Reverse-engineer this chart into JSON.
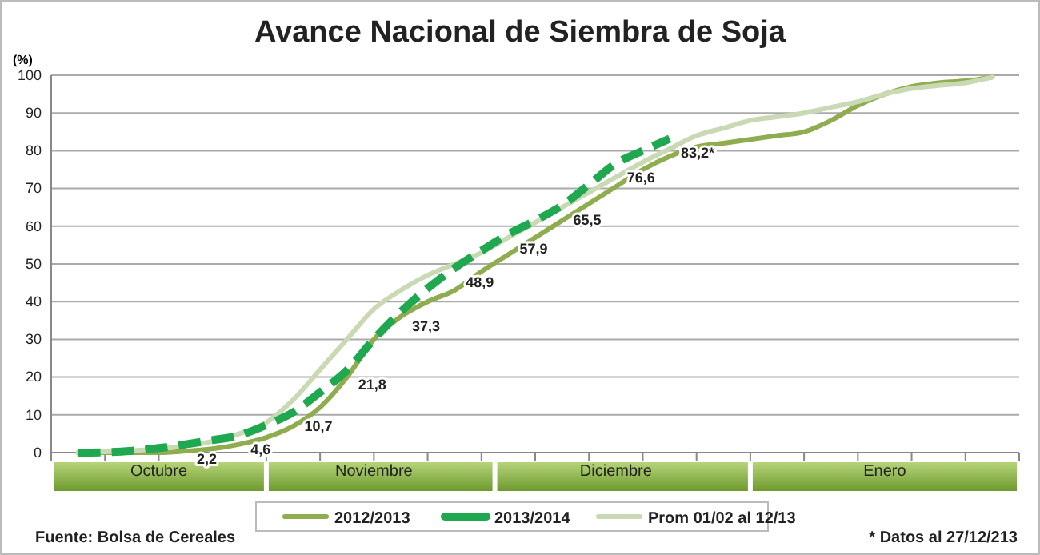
{
  "chart_data": {
    "type": "line",
    "title": "Avance Nacional de Siembra de Soja",
    "ylabel": "(%)",
    "categories": [
      null,
      null,
      null,
      null,
      "Octubre",
      null,
      null,
      null,
      null,
      null,
      null,
      null,
      "Noviembre",
      null,
      null,
      null,
      null,
      null,
      null,
      null,
      null,
      "Diciembre",
      null,
      null,
      null,
      null,
      null,
      null,
      null,
      null,
      null,
      "Enero",
      null,
      null,
      null,
      null,
      null
    ],
    "ylim": [
      0,
      100
    ],
    "yticks": [
      0,
      10,
      20,
      30,
      40,
      50,
      60,
      70,
      80,
      90,
      100
    ],
    "grid": "y",
    "legend": "bottom",
    "series": [
      {
        "name": "2012/2013",
        "color": "#8fac4e",
        "line_style": "solid",
        "values": [
          null,
          0,
          0,
          0,
          0,
          0.4,
          1,
          2.2,
          4,
          7,
          12,
          20,
          30,
          36,
          40,
          43,
          48,
          52.5,
          57,
          61.5,
          66,
          70.5,
          75,
          78.5,
          81,
          82,
          83,
          84,
          85,
          88,
          92,
          95,
          97,
          98,
          98.5,
          99.5,
          null
        ]
      },
      {
        "name": "2013/2014",
        "color": "#1fa84f",
        "line_style": "dashed",
        "values": [
          null,
          0,
          0.1,
          0.5,
          1.2,
          2.2,
          3.3,
          4.6,
          7.3,
          10.7,
          16,
          21.8,
          30,
          37.3,
          43.5,
          48.9,
          53.5,
          57.9,
          61.5,
          65.5,
          71,
          76.6,
          80,
          83.2,
          null,
          null,
          null,
          null,
          null,
          null,
          null,
          null,
          null,
          null,
          null,
          null,
          null
        ],
        "value_labels": [
          null,
          null,
          null,
          null,
          null,
          "2,2",
          null,
          "4,6",
          null,
          "10,7",
          null,
          "21,8",
          null,
          "37,3",
          null,
          "48,9",
          null,
          "57,9",
          null,
          "65,5",
          null,
          "76,6",
          null,
          "83,2*",
          null,
          null,
          null,
          null,
          null,
          null,
          null,
          null,
          null,
          null,
          null,
          null,
          null
        ]
      },
      {
        "name": "Prom 01/02 al 12/13",
        "color": "#c9d9b3",
        "line_style": "solid",
        "values": [
          null,
          0,
          0.2,
          0.5,
          1,
          1.8,
          3,
          5,
          8,
          14,
          22,
          30,
          38,
          43,
          47,
          50,
          53,
          57,
          61,
          65,
          69,
          73,
          77,
          80.5,
          84,
          86,
          88,
          89,
          90,
          91.5,
          93,
          95,
          96.5,
          97.3,
          98,
          99.5,
          null
        ]
      }
    ],
    "annotations": [
      "Fuente: Bolsa de Cereales",
      "* Datos al 27/12/213"
    ]
  }
}
